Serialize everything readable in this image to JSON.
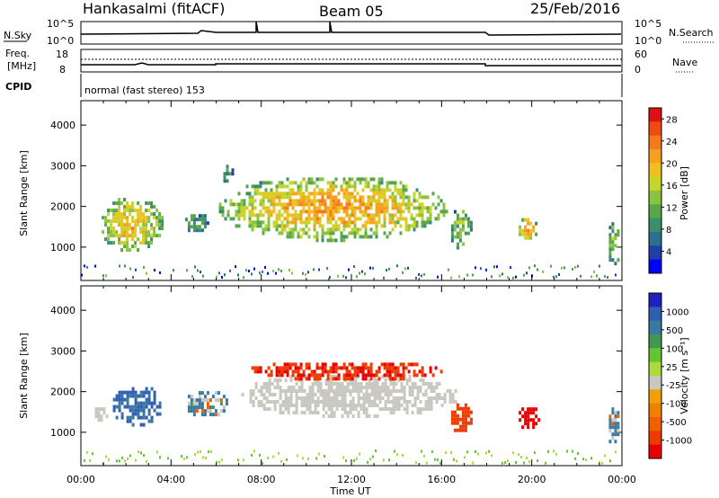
{
  "header": {
    "station": "Hankasalmi (fitACF)",
    "beam": "Beam 05",
    "date": "25/Feb/2016"
  },
  "summary_panels": {
    "nsky": {
      "left_label": "N.Sky",
      "left_ticks": [
        "10^5",
        "10^0"
      ],
      "right_label": "N.Search",
      "right_ticks": [
        "10^5",
        "10^0"
      ]
    },
    "freq": {
      "left_label_1": "Freq.",
      "left_label_2": "[MHz]",
      "left_ticks": [
        "18",
        "8"
      ],
      "right_label": "Nave",
      "right_ticks": [
        "60",
        "0"
      ]
    },
    "cpid": {
      "label": "CPID",
      "text": "normal (fast stereo) 153"
    }
  },
  "colors": {
    "power": [
      "#0000ff",
      "#1f3fa8",
      "#2e6e8e",
      "#3a8f6a",
      "#5aa64a",
      "#88c440",
      "#c8d42a",
      "#f0c020",
      "#f5a020",
      "#f57a1a",
      "#f04a14",
      "#e01010"
    ],
    "velocity": [
      "#2020c0",
      "#2f5fb0",
      "#3a7aa0",
      "#3f9a50",
      "#64c432",
      "#a8dc3a",
      "#c8c8c0",
      "#f0a000",
      "#f08000",
      "#f06000",
      "#ee3a00",
      "#e80000"
    ],
    "ground_scatter": "#bebeb4"
  },
  "chart_data": [
    {
      "type": "heatmap",
      "title": "",
      "xlabel": "",
      "ylabel": "Slant Range [km]",
      "xlim": [
        0,
        24
      ],
      "ylim": [
        180,
        4600
      ],
      "yticks": [
        "1000",
        "2000",
        "3000",
        "4000"
      ],
      "colorbar": {
        "label": "Power [dB]",
        "ticks": [
          "4",
          "8",
          "12",
          "16",
          "20",
          "24",
          "28"
        ],
        "range": [
          0,
          30
        ]
      },
      "scatter_regions": [
        {
          "t": [
            0.8,
            3.6
          ],
          "r": [
            900,
            2300
          ],
          "level": 20
        },
        {
          "t": [
            4.5,
            5.6
          ],
          "r": [
            1400,
            1900
          ],
          "level": 10
        },
        {
          "t": [
            6.2,
            6.7
          ],
          "r": [
            2600,
            3200
          ],
          "level": 8
        },
        {
          "t": [
            6.0,
            16.2
          ],
          "r": [
            1200,
            2800
          ],
          "level": 22
        },
        {
          "t": [
            16.3,
            17.3
          ],
          "r": [
            1000,
            2000
          ],
          "level": 14
        },
        {
          "t": [
            19.3,
            20.2
          ],
          "r": [
            1200,
            1800
          ],
          "level": 22
        },
        {
          "t": [
            23.3,
            23.9
          ],
          "r": [
            600,
            1700
          ],
          "level": 14
        }
      ]
    },
    {
      "type": "heatmap",
      "title": "",
      "xlabel": "Time UT",
      "ylabel": "Slant Range [km]",
      "xlim": [
        0,
        24
      ],
      "ylim": [
        180,
        4600
      ],
      "xticks": [
        "00:00",
        "04:00",
        "08:00",
        "12:00",
        "16:00",
        "20:00",
        "00:00"
      ],
      "yticks": [
        "1000",
        "2000",
        "3000",
        "4000"
      ],
      "colorbar": {
        "label": "Velocity [m s⁻¹]",
        "ticks": [
          "1000",
          "500",
          "100",
          "25",
          "-25",
          "-100",
          "-500",
          "-1000"
        ],
        "range": [
          -1000,
          1000
        ]
      },
      "scatter_regions": [
        {
          "t": [
            1.3,
            3.6
          ],
          "r": [
            1200,
            2200
          ],
          "velocity": 150
        },
        {
          "t": [
            0.5,
            1.2
          ],
          "r": [
            1300,
            1700
          ],
          "velocity": 0
        },
        {
          "t": [
            4.5,
            6.5
          ],
          "r": [
            1400,
            2100
          ],
          "velocity": 30
        },
        {
          "t": [
            7.0,
            16.8
          ],
          "r": [
            1400,
            2500
          ],
          "velocity": 0
        },
        {
          "t": [
            7.2,
            16.0
          ],
          "r": [
            2300,
            2800
          ],
          "velocity": -400
        },
        {
          "t": [
            16.3,
            17.3
          ],
          "r": [
            1000,
            1800
          ],
          "velocity": -300
        },
        {
          "t": [
            19.3,
            20.3
          ],
          "r": [
            1100,
            1700
          ],
          "velocity": -500
        },
        {
          "t": [
            23.3,
            23.9
          ],
          "r": [
            700,
            1700
          ],
          "velocity": 40
        }
      ]
    }
  ]
}
